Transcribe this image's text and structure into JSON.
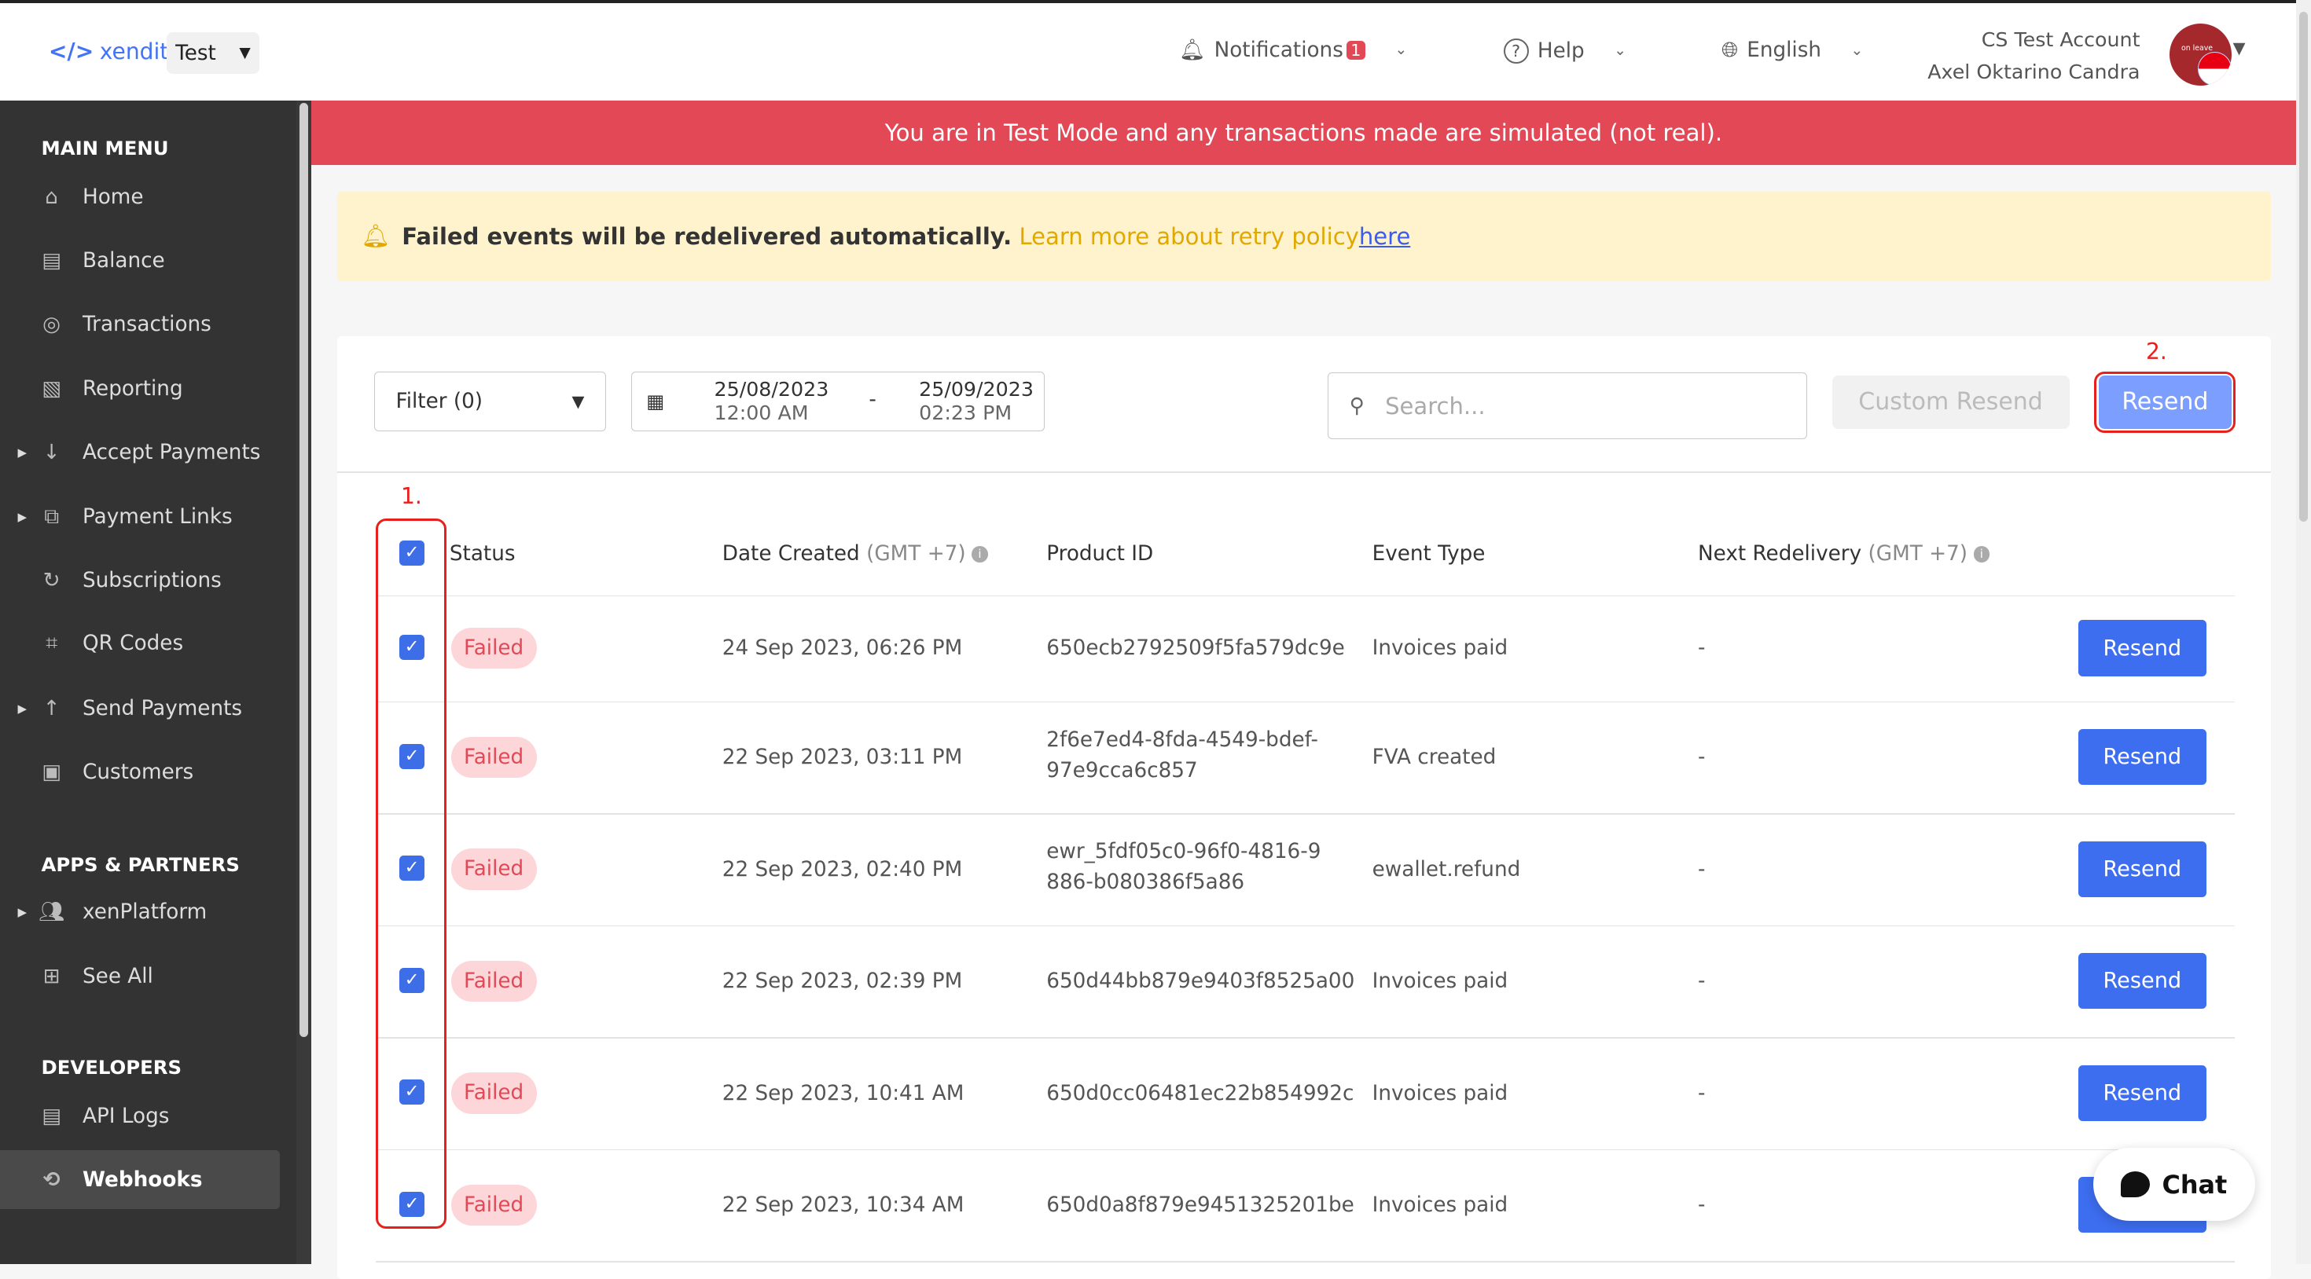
{
  "header": {
    "logo_text": "xendit",
    "environment": "Test",
    "notifications_label": "Notifications",
    "notifications_count": "1",
    "help_label": "Help",
    "language_label": "English",
    "account_name": "CS Test Account",
    "user_name": "Axel Oktarino Candra",
    "avatar_badge": "on leave"
  },
  "sidebar": {
    "sections": [
      {
        "title": "MAIN MENU",
        "items": [
          {
            "label": "Home",
            "icon": "home-icon"
          },
          {
            "label": "Balance",
            "icon": "balance-icon"
          },
          {
            "label": "Transactions",
            "icon": "coins-icon"
          },
          {
            "label": "Reporting",
            "icon": "report-icon"
          },
          {
            "label": "Accept Payments",
            "icon": "arrow-down-icon",
            "expandable": true
          },
          {
            "label": "Payment Links",
            "icon": "link-icon",
            "expandable": true
          },
          {
            "label": "Subscriptions",
            "icon": "refresh-icon"
          },
          {
            "label": "QR Codes",
            "icon": "qr-icon"
          },
          {
            "label": "Send Payments",
            "icon": "arrow-up-icon",
            "expandable": true
          },
          {
            "label": "Customers",
            "icon": "customer-icon"
          }
        ]
      },
      {
        "title": "APPS & PARTNERS",
        "items": [
          {
            "label": "xenPlatform",
            "icon": "users-icon",
            "expandable": true
          },
          {
            "label": "See All",
            "icon": "grid-icon"
          }
        ]
      },
      {
        "title": "DEVELOPERS",
        "items": [
          {
            "label": "API Logs",
            "icon": "log-icon"
          },
          {
            "label": "Webhooks",
            "icon": "webhook-icon",
            "active": true
          }
        ]
      }
    ]
  },
  "banner": {
    "text": "You are in Test Mode and any transactions made are simulated (not real)."
  },
  "notice": {
    "bold": "Failed events will be redelivered automatically.",
    "text": "Learn more about retry policy",
    "link": "here"
  },
  "toolbar": {
    "filter_label": "Filter (0)",
    "date_from": "25/08/2023",
    "time_from": "12:00 AM",
    "date_sep": "-",
    "date_to": "25/09/2023",
    "time_to": "02:23 PM",
    "search_placeholder": "Search...",
    "custom_resend_label": "Custom Resend",
    "resend_label": "Resend"
  },
  "annotations": {
    "step1": "1.",
    "step2": "2.",
    "color": "#e8201c"
  },
  "table": {
    "columns": [
      {
        "label": "Status"
      },
      {
        "label": "Date Created",
        "unit": "(GMT +7)"
      },
      {
        "label": "Product ID"
      },
      {
        "label": "Event Type"
      },
      {
        "label": "Next Redelivery",
        "unit": "(GMT +7)"
      }
    ],
    "header_checked": true,
    "rows": [
      {
        "checked": true,
        "status": "Failed",
        "date": "24 Sep 2023, 06:26 PM",
        "product_id": "650ecb2792509f5fa579dc9e",
        "event": "Invoices paid",
        "next": "-",
        "action": "Resend"
      },
      {
        "checked": true,
        "status": "Failed",
        "date": "22 Sep 2023, 03:11 PM",
        "product_id": "2f6e7ed4-8fda-4549-bdef-97e9cca6c857",
        "event": "FVA created",
        "next": "-",
        "action": "Resend"
      },
      {
        "checked": true,
        "status": "Failed",
        "date": "22 Sep 2023, 02:40 PM",
        "product_id": "ewr_5fdf05c0-96f0-4816-9886-b080386f5a86",
        "event": "ewallet.refund",
        "next": "-",
        "action": "Resend"
      },
      {
        "checked": true,
        "status": "Failed",
        "date": "22 Sep 2023, 02:39 PM",
        "product_id": "650d44bb879e9403f8525a00",
        "event": "Invoices paid",
        "next": "-",
        "action": "Resend"
      },
      {
        "checked": true,
        "status": "Failed",
        "date": "22 Sep 2023, 10:41 AM",
        "product_id": "650d0cc06481ec22b854992c",
        "event": "Invoices paid",
        "next": "-",
        "action": "Resend"
      },
      {
        "checked": true,
        "status": "Failed",
        "date": "22 Sep 2023, 10:34 AM",
        "product_id": "650d0a8f879e9451325201be",
        "event": "Invoices paid",
        "next": "-",
        "action": "Resend"
      }
    ]
  },
  "chat": {
    "label": "Chat"
  },
  "colors": {
    "accent": "#3d6ef0",
    "danger": "#e34856",
    "sidebar": "#333333",
    "notice": "#fef3cd"
  }
}
